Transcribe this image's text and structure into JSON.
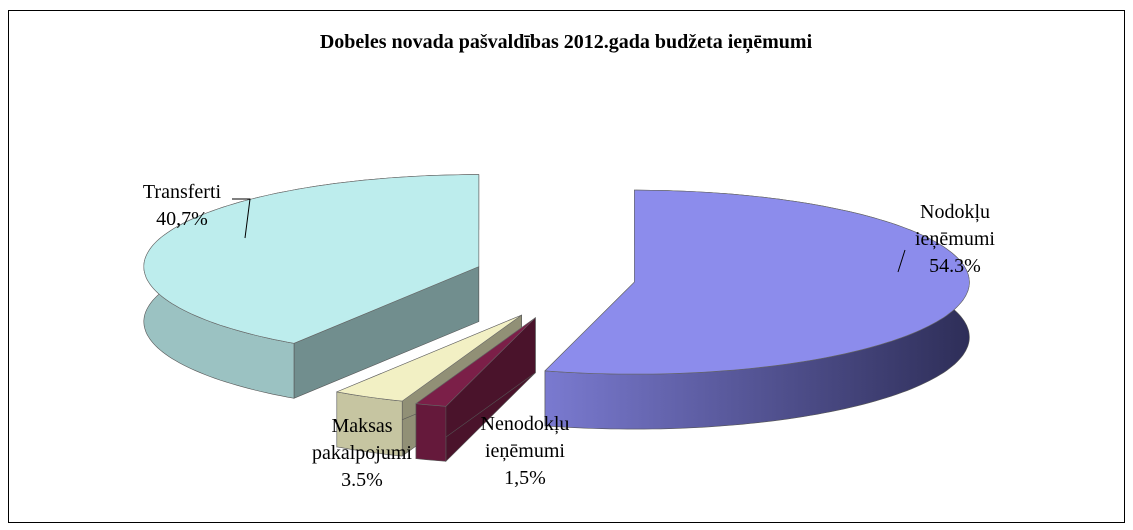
{
  "chart_data": {
    "type": "pie",
    "title": "Dobeles novada pašvaldības 2012.gada budžeta ieņēmumi",
    "categories": [
      "Nodokļu ieņēmumi",
      "Nenodokļu ieņēmumi",
      "Maksas pakalpojumi",
      "Transferti"
    ],
    "values": [
      54.3,
      1.5,
      3.5,
      40.7
    ],
    "value_labels": [
      "54.3%",
      "1,5%",
      "3.5%",
      "40,7%"
    ],
    "colors": [
      "#8c8cec",
      "#7b1f48",
      "#f2f0c4",
      "#bdeded"
    ]
  }
}
